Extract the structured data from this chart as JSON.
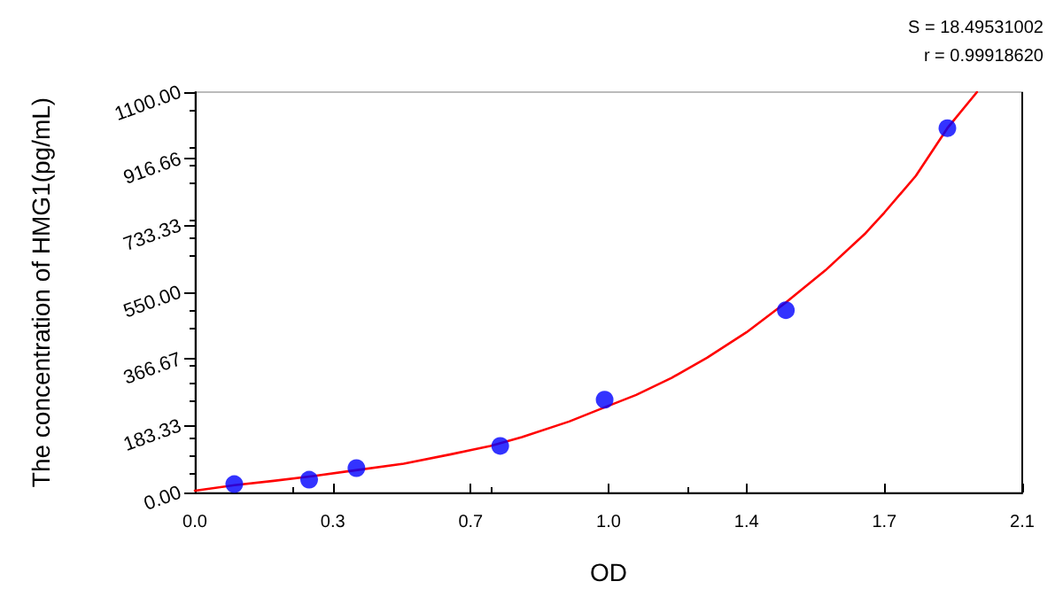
{
  "chart_data": {
    "type": "scatter",
    "xlabel": "OD",
    "ylabel": "The concentration of HMG1(pg/mL)",
    "annotations": [
      "S = 18.49531002",
      "r = 0.99918620"
    ],
    "xlim": [
      0,
      2.1
    ],
    "xticks": [
      {
        "value": 0,
        "label": "0.0"
      },
      {
        "value": 0.35,
        "label": "0.3"
      },
      {
        "value": 0.7,
        "label": "0.7"
      },
      {
        "value": 1.05,
        "label": "1.0"
      },
      {
        "value": 1.4,
        "label": "1.4"
      },
      {
        "value": 1.75,
        "label": "1.7"
      },
      {
        "value": 2.1,
        "label": "2.1"
      }
    ],
    "ylim": [
      0,
      1100
    ],
    "yticks": [
      {
        "value": 0,
        "label": "0.00"
      },
      {
        "value": 183.33,
        "label": "183.33"
      },
      {
        "value": 366.67,
        "label": "366.67"
      },
      {
        "value": 550,
        "label": "550.00"
      },
      {
        "value": 733.33,
        "label": "733.33"
      },
      {
        "value": 916.66,
        "label": "916.66"
      },
      {
        "value": 1100,
        "label": "1100.00"
      }
    ],
    "grid": false,
    "series": [
      {
        "marker": "circle",
        "color": "#0000ff",
        "x": [
          0.1,
          0.29,
          0.41,
          0.775,
          1.04,
          1.5,
          1.91
        ],
        "values": [
          23,
          35,
          67,
          128,
          255,
          501,
          1001
        ]
      },
      {
        "type": "line",
        "marker": "none",
        "color": "#ff0000",
        "line_style": "solid",
        "x": [
          0,
          0.1,
          0.2,
          0.3,
          0.4,
          0.53,
          0.65,
          0.75,
          0.83,
          0.95,
          1.04,
          1.12,
          1.21,
          1.3,
          1.4,
          1.5,
          1.6,
          1.7,
          1.75,
          1.83,
          1.91,
          1.985
        ],
        "values": [
          5,
          20,
          32,
          45,
          60,
          79,
          105,
          128,
          152,
          195,
          234,
          268,
          315,
          370,
          440,
          522,
          610,
          710,
          769,
          870,
          1001,
          1100
        ]
      }
    ]
  }
}
